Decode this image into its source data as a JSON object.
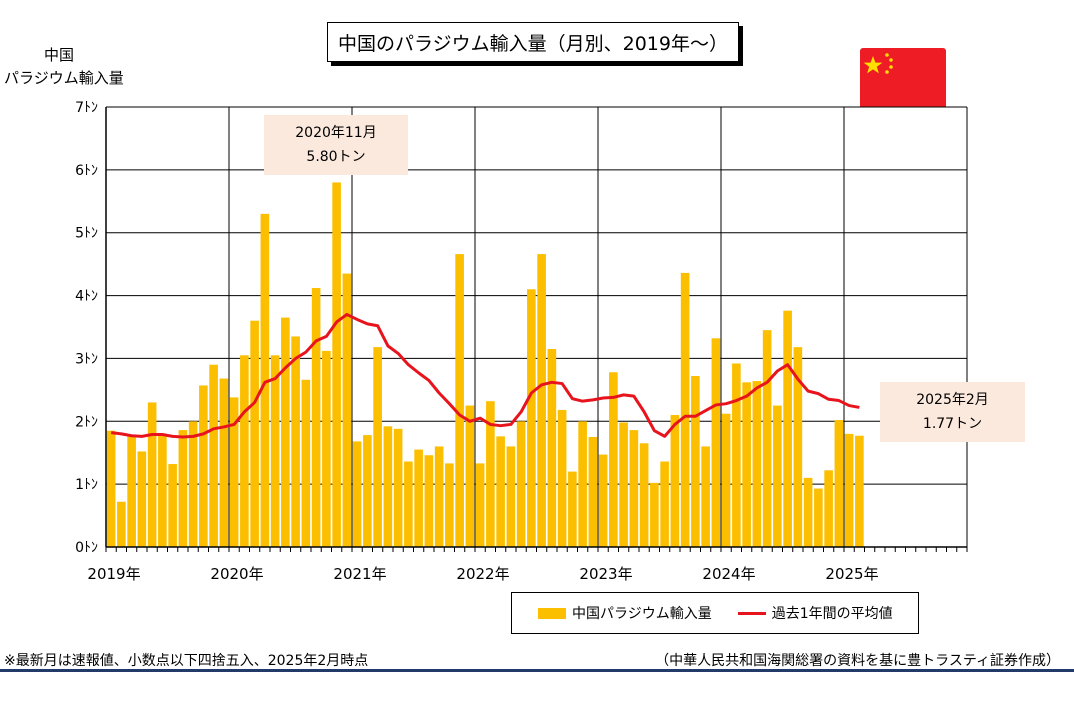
{
  "title": "中国のパラジウム輸入量（月別、2019年～）",
  "ylabel_line1": "中国",
  "ylabel_line2": "パラジウム輸入量",
  "note": "※最新月は速報値、小数点以下四捨五入、2025年2月時点",
  "source": "（中華人民共和国海関総署の資料を基に豊トラスティ証券作成）",
  "legend": {
    "bar": "中国パラジウム輸入量",
    "line": "過去1年間の平均値"
  },
  "callouts": [
    {
      "line1": "2020年11月",
      "line2": "5.80トン"
    },
    {
      "line1": "2025年2月",
      "line2": "1.77トン"
    }
  ],
  "colors": {
    "bar": "#fbbf00",
    "line": "#e8141d",
    "flag": "#ee1c25",
    "star": "#ffde00"
  },
  "icon": "china-flag-icon",
  "chart_data": {
    "type": "bar",
    "title": "中国のパラジウム輸入量（月別、2019年～）",
    "ylabel": "中国パラジウム輸入量",
    "ylim": [
      0,
      7
    ],
    "yticks": [
      "0ﾄﾝ",
      "1ﾄﾝ",
      "2ﾄﾝ",
      "3ﾄﾝ",
      "4ﾄﾝ",
      "5ﾄﾝ",
      "6ﾄﾝ",
      "7ﾄﾝ"
    ],
    "xticks": [
      "2019年",
      "2020年",
      "2021年",
      "2022年",
      "2023年",
      "2024年",
      "2025年"
    ],
    "x_range": [
      "2019-01",
      "2025-12"
    ],
    "grid": true,
    "legend_position": "bottom-right",
    "x": [
      "2019-01",
      "2019-02",
      "2019-03",
      "2019-04",
      "2019-05",
      "2019-06",
      "2019-07",
      "2019-08",
      "2019-09",
      "2019-10",
      "2019-11",
      "2019-12",
      "2020-01",
      "2020-02",
      "2020-03",
      "2020-04",
      "2020-05",
      "2020-06",
      "2020-07",
      "2020-08",
      "2020-09",
      "2020-10",
      "2020-11",
      "2020-12",
      "2021-01",
      "2021-02",
      "2021-03",
      "2021-04",
      "2021-05",
      "2021-06",
      "2021-07",
      "2021-08",
      "2021-09",
      "2021-10",
      "2021-11",
      "2021-12",
      "2022-01",
      "2022-02",
      "2022-03",
      "2022-04",
      "2022-05",
      "2022-06",
      "2022-07",
      "2022-08",
      "2022-09",
      "2022-10",
      "2022-11",
      "2022-12",
      "2023-01",
      "2023-02",
      "2023-03",
      "2023-04",
      "2023-05",
      "2023-06",
      "2023-07",
      "2023-08",
      "2023-09",
      "2023-10",
      "2023-11",
      "2023-12",
      "2024-01",
      "2024-02",
      "2024-03",
      "2024-04",
      "2024-05",
      "2024-06",
      "2024-07",
      "2024-08",
      "2024-09",
      "2024-10",
      "2024-11",
      "2024-12",
      "2025-01",
      "2025-02"
    ],
    "series": [
      {
        "name": "中国パラジウム輸入量",
        "kind": "bar",
        "values": [
          1.85,
          0.72,
          1.76,
          1.52,
          2.3,
          1.78,
          1.32,
          1.86,
          2.0,
          2.57,
          2.9,
          2.68,
          2.38,
          3.05,
          3.6,
          5.3,
          3.05,
          3.65,
          3.35,
          2.66,
          4.12,
          3.12,
          5.8,
          4.35,
          1.68,
          1.78,
          3.18,
          1.92,
          1.88,
          1.36,
          1.55,
          1.46,
          1.6,
          1.33,
          4.66,
          2.25,
          1.33,
          2.32,
          1.76,
          1.6,
          2.0,
          4.1,
          4.66,
          3.15,
          2.18,
          1.2,
          2.0,
          1.75,
          1.47,
          2.78,
          1.98,
          1.86,
          1.65,
          1.02,
          1.36,
          2.1,
          4.36,
          2.72,
          1.6,
          3.32,
          2.12,
          2.92,
          2.62,
          2.64,
          3.45,
          2.25,
          3.76,
          3.18,
          1.1,
          0.93,
          1.22,
          2.02,
          1.8,
          1.77
        ]
      },
      {
        "name": "過去1年間の平均値",
        "kind": "line",
        "values": [
          1.82,
          1.8,
          1.77,
          1.76,
          1.79,
          1.79,
          1.76,
          1.75,
          1.76,
          1.8,
          1.88,
          1.91,
          1.95,
          2.15,
          2.3,
          2.62,
          2.68,
          2.85,
          3.0,
          3.1,
          3.28,
          3.35,
          3.58,
          3.7,
          3.62,
          3.55,
          3.52,
          3.2,
          3.08,
          2.9,
          2.77,
          2.65,
          2.45,
          2.28,
          2.1,
          2.0,
          2.05,
          1.95,
          1.93,
          1.95,
          2.15,
          2.45,
          2.58,
          2.62,
          2.6,
          2.36,
          2.32,
          2.34,
          2.37,
          2.38,
          2.42,
          2.4,
          2.15,
          1.85,
          1.76,
          1.95,
          2.08,
          2.08,
          2.17,
          2.26,
          2.28,
          2.33,
          2.4,
          2.53,
          2.62,
          2.8,
          2.9,
          2.67,
          2.48,
          2.44,
          2.35,
          2.33,
          2.25,
          2.22
        ]
      }
    ],
    "annotations": [
      {
        "x": "2020-11",
        "text": "2020年11月 5.80トン"
      },
      {
        "x": "2025-02",
        "text": "2025年2月 1.77トン"
      }
    ]
  }
}
